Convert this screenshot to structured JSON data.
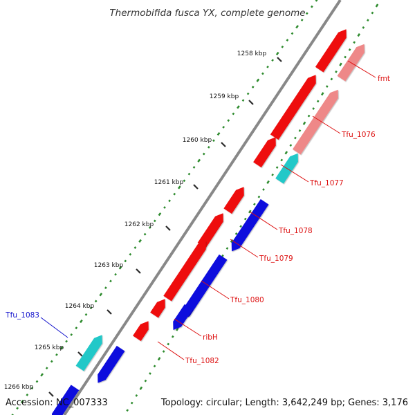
{
  "title": "Thermobifida fusca YX, complete genome",
  "accession": "Accession: NC_007333",
  "summary": "Topology: circular; Length: 3,642,249 bp; Genes: 3,176",
  "colors": {
    "backbone": "#888888",
    "tick_major": "#2a2a2a",
    "tick_minor": "#1f8a1f",
    "gc_skew": "#2e8b2e",
    "forward_gene": "#ee1111",
    "forward_gene_light": "#ee8888",
    "reverse_gene": "#1111dd",
    "rna_gene": "#22c8c8",
    "label_red": "#dd1111",
    "label_blue": "#1111cc"
  },
  "kbp_labels": [
    "1258 kbp",
    "1259 kbp",
    "1260 kbp",
    "1261 kbp",
    "1262 kbp",
    "1263 kbp",
    "1264 kbp",
    "1265 kbp",
    "1266 kbp"
  ],
  "genes": [
    {
      "name": "fmt",
      "strand": "forward",
      "color": "forward_gene_light",
      "label_color": "label_red"
    },
    {
      "name": "Tfu_1076",
      "strand": "forward",
      "color": "forward_gene_light",
      "label_color": "label_red"
    },
    {
      "name": "Tfu_1077",
      "strand": "forward",
      "color": "rna_gene",
      "label_color": "label_red"
    },
    {
      "name": "Tfu_1078",
      "strand": "reverse",
      "color": "reverse_gene",
      "label_color": "label_red"
    },
    {
      "name": "Tfu_1079",
      "strand": "forward",
      "color": "forward_gene",
      "label_color": "label_red"
    },
    {
      "name": "Tfu_1080",
      "strand": "reverse",
      "color": "reverse_gene",
      "label_color": "label_red"
    },
    {
      "name": "ribH",
      "strand": "reverse",
      "color": "reverse_gene",
      "label_color": "label_red"
    },
    {
      "name": "Tfu_1082",
      "strand": "forward",
      "color": "forward_gene",
      "label_color": "label_red"
    },
    {
      "name": "Tfu_1083",
      "strand": "reverse",
      "color": "rna_gene",
      "label_color": "label_blue"
    }
  ]
}
